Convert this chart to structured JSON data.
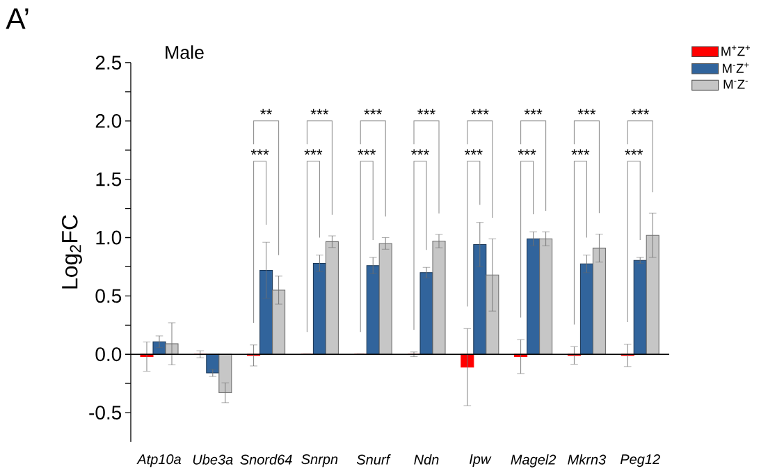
{
  "chart_data": {
    "type": "bar",
    "title": "Male",
    "ylabel": "Log$_{2}$FC",
    "categories": [
      "Atp10a",
      "Ube3a",
      "Snord64",
      "Snrpn",
      "Snurf",
      "Ndn",
      "Ipw",
      "Magel2",
      "Mkrn3",
      "Peg12"
    ],
    "series": [
      {
        "name": "M$^{+}$Z$^{+}$",
        "color": "#ff0000",
        "values": [
          -0.02,
          0,
          -0.01,
          0,
          0,
          0,
          -0.11,
          -0.02,
          -0.01,
          -0.01
        ],
        "errors": [
          0.125,
          0.03,
          0.09,
          null,
          null,
          0.02,
          0.33,
          0.145,
          0.075,
          0.095
        ]
      },
      {
        "name": "M$^{-}$Z$^{+}$",
        "color": "#31649c",
        "values": [
          0.107,
          -0.16,
          0.72,
          0.78,
          0.76,
          0.7,
          0.94,
          0.99,
          0.775,
          0.805
        ],
        "errors": [
          0.05,
          0.03,
          0.24,
          0.07,
          0.07,
          0.045,
          0.19,
          0.06,
          0.075,
          0.025
        ]
      },
      {
        "name": "M$^{-}$Z$^{-}$",
        "color": "#c6c6c6",
        "values": [
          0.09,
          -0.33,
          0.55,
          0.965,
          0.95,
          0.97,
          0.68,
          0.99,
          0.91,
          1.02
        ],
        "errors": [
          0.18,
          0.085,
          0.12,
          0.05,
          0.05,
          0.057,
          0.31,
          0.06,
          0.12,
          0.19
        ]
      }
    ],
    "ylim": [
      -0.75,
      2.5
    ],
    "yticks": [
      {
        "value": -0.5,
        "label": "-0.5"
      },
      {
        "value": 0,
        "label": "0.0"
      },
      {
        "value": 0.5,
        "label": "0.5"
      },
      {
        "value": 1,
        "label": "1.0"
      },
      {
        "value": 1.5,
        "label": "1.5"
      },
      {
        "value": 2,
        "label": "2.0"
      },
      {
        "value": 2.5,
        "label": "2.5"
      }
    ],
    "legend": "top right",
    "annotations": [
      "A’",
      "**",
      "***",
      "***",
      "***",
      "***",
      "***",
      "***",
      "***",
      "***",
      "***",
      "***",
      "***",
      "***",
      "***",
      "***",
      "***"
    ]
  }
}
